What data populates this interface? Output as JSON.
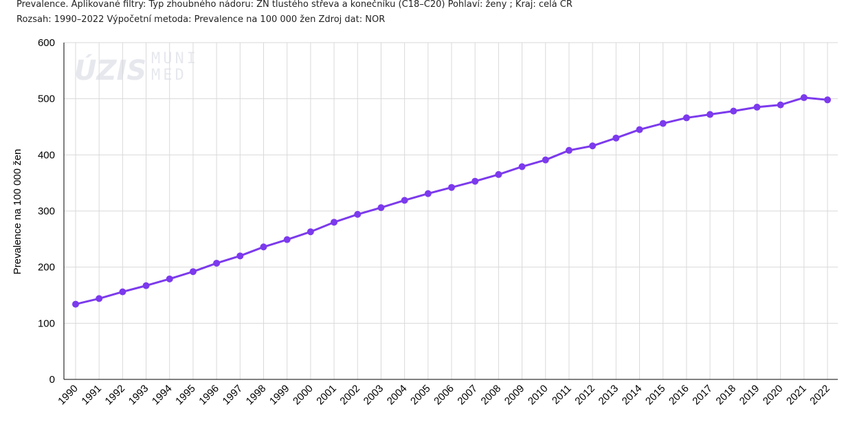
{
  "header": {
    "line1": "Prevalence. Aplikované filtry: Typ zhoubného nádoru: ZN tlustého střeva a konečníku (C18–C20) Pohlaví: ženy ; Kraj: celá ČR",
    "line2": "Rozsah: 1990–2022 Výpočetní metoda: Prevalence na 100 000 žen Zdroj dat: NOR"
  },
  "watermark": {
    "logo1": "ÚZIS",
    "logo2_line1": "MUNI",
    "logo2_line2": "MED"
  },
  "colors": {
    "line": "#7c3aed",
    "grid": "#d9d9d9",
    "axis": "#000000"
  },
  "chart_data": {
    "type": "line",
    "title": "",
    "xlabel": "",
    "ylabel": "Prevalence na 100 000 žen",
    "ylim": [
      0,
      600
    ],
    "yticks": [
      0,
      100,
      200,
      300,
      400,
      500,
      600
    ],
    "grid": true,
    "legend": "none",
    "categories": [
      "1990",
      "1991",
      "1992",
      "1993",
      "1994",
      "1995",
      "1996",
      "1997",
      "1998",
      "1999",
      "2000",
      "2001",
      "2002",
      "2003",
      "2004",
      "2005",
      "2006",
      "2007",
      "2008",
      "2009",
      "2010",
      "2011",
      "2012",
      "2013",
      "2014",
      "2015",
      "2016",
      "2017",
      "2018",
      "2019",
      "2020",
      "2021",
      "2022"
    ],
    "series": [
      {
        "values": [
          134,
          144,
          156,
          167,
          179,
          192,
          207,
          220,
          236,
          249,
          263,
          280,
          294,
          306,
          319,
          331,
          342,
          353,
          365,
          379,
          391,
          408,
          416,
          430,
          445,
          456,
          466,
          472,
          478,
          485,
          489,
          502,
          498
        ]
      }
    ]
  }
}
